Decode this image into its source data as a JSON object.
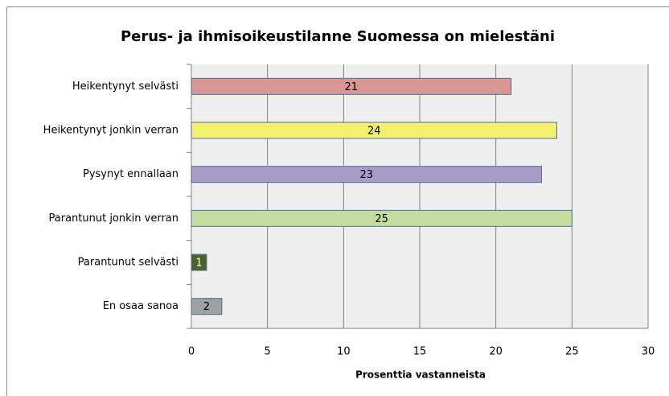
{
  "chart_data": {
    "type": "barh",
    "title": "Perus- ja ihmisoikeustilanne Suomessa on mielestäni",
    "categories": [
      "Heikentynyt selvästi",
      "Heikentynyt jonkin verran",
      "Pysynyt ennallaan",
      "Parantunut jonkin verran",
      "Parantunut selvästi",
      "En osaa sanoa"
    ],
    "values": [
      21,
      24,
      23,
      25,
      1,
      2
    ],
    "colors": [
      "#d99694",
      "#f2f06e",
      "#a99bc8",
      "#c3dca0",
      "#4f6228",
      "#a0a0a0"
    ],
    "xlabel": "Prosenttia vastanneista",
    "xlim": [
      0,
      30
    ],
    "xticks": [
      0,
      5,
      10,
      15,
      20,
      25,
      30
    ],
    "grid": true
  }
}
